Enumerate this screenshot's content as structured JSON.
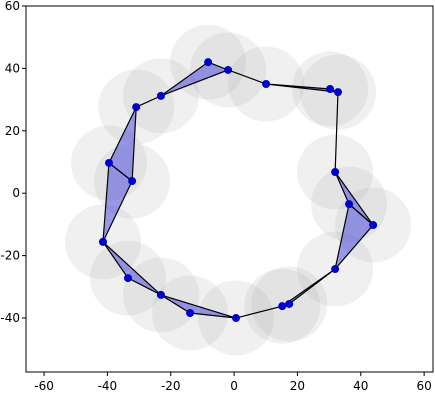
{
  "chart_data": {
    "type": "scatter",
    "x": [
      -8.2,
      -1.9,
      10.1,
      30.3,
      32.8,
      31.9,
      36.3,
      43.9,
      31.9,
      17.4,
      15.2,
      0.6,
      -13.9,
      -23.1,
      -33.5,
      -41.4,
      -32.2,
      -39.5,
      -30.9,
      -23.1
    ],
    "y": [
      42.0,
      39.5,
      35.0,
      33.4,
      32.4,
      6.8,
      -3.5,
      -10.2,
      -24.3,
      -35.5,
      -36.2,
      -40.0,
      -38.4,
      -32.6,
      -27.2,
      -15.6,
      3.9,
      9.7,
      27.6,
      31.2
    ],
    "point_color": "#0000cc",
    "circle_color": "#999999",
    "circle_radius": 12,
    "triangles": [
      [
        19,
        0,
        1
      ],
      [
        2,
        3,
        4
      ],
      [
        5,
        6,
        7
      ],
      [
        6,
        7,
        8
      ],
      [
        8,
        9,
        10
      ],
      [
        11,
        12,
        13
      ],
      [
        13,
        14,
        15
      ],
      [
        15,
        16,
        17
      ],
      [
        16,
        17,
        18
      ]
    ],
    "triangle_color": "#4040dd",
    "segments": [
      [
        1,
        2
      ],
      [
        4,
        5
      ],
      [
        10,
        11
      ],
      [
        18,
        19
      ]
    ],
    "xlim": [
      -65.7,
      62.8
    ],
    "ylim": [
      -57.3,
      60
    ],
    "xticks": [
      -60,
      -40,
      -20,
      0,
      20,
      40,
      60
    ],
    "yticks": [
      -40,
      -20,
      0,
      20,
      40,
      60
    ]
  }
}
